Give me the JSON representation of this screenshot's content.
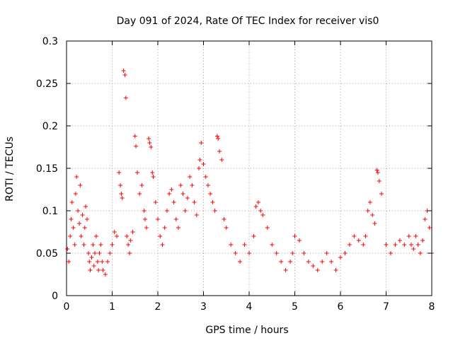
{
  "chart_data": {
    "type": "scatter",
    "title": "Day 091 of 2024, Rate Of TEC Index for receiver vis0",
    "xlabel": "GPS time / hours",
    "ylabel": "ROTI / TECUs",
    "xlim": [
      0,
      8
    ],
    "ylim": [
      0,
      0.3
    ],
    "xticks": [
      "0",
      "1",
      "2",
      "3",
      "4",
      "5",
      "6",
      "7",
      "8"
    ],
    "yticks": [
      "0",
      "0.05",
      "0.1",
      "0.15",
      "0.2",
      "0.25",
      "0.3"
    ],
    "grid": true,
    "marker": "+",
    "color": "#ff0000",
    "series": [
      {
        "name": "vis0",
        "x": [
          0.02,
          0.05,
          0.08,
          0.1,
          0.12,
          0.15,
          0.18,
          0.2,
          0.22,
          0.25,
          0.28,
          0.3,
          0.32,
          0.35,
          0.38,
          0.4,
          0.42,
          0.45,
          0.48,
          0.5,
          0.52,
          0.55,
          0.58,
          0.6,
          0.62,
          0.65,
          0.68,
          0.7,
          0.72,
          0.75,
          0.78,
          0.8,
          0.85,
          0.9,
          0.95,
          1.0,
          1.05,
          1.1,
          1.15,
          1.18,
          1.2,
          1.22,
          1.25,
          1.28,
          1.3,
          1.32,
          1.35,
          1.38,
          1.4,
          1.45,
          1.5,
          1.52,
          1.55,
          1.6,
          1.65,
          1.7,
          1.72,
          1.75,
          1.8,
          1.82,
          1.85,
          1.88,
          1.9,
          1.95,
          2.0,
          2.05,
          2.1,
          2.15,
          2.2,
          2.25,
          2.3,
          2.35,
          2.4,
          2.45,
          2.5,
          2.55,
          2.6,
          2.65,
          2.7,
          2.75,
          2.8,
          2.85,
          2.9,
          2.92,
          2.95,
          3.0,
          3.05,
          3.1,
          3.15,
          3.2,
          3.25,
          3.3,
          3.32,
          3.35,
          3.4,
          3.45,
          3.5,
          3.6,
          3.7,
          3.8,
          3.9,
          4.0,
          4.1,
          4.15,
          4.2,
          4.25,
          4.3,
          4.4,
          4.5,
          4.6,
          4.7,
          4.8,
          4.9,
          4.95,
          5.0,
          5.1,
          5.2,
          5.3,
          5.4,
          5.5,
          5.6,
          5.7,
          5.8,
          5.9,
          6.0,
          6.1,
          6.2,
          6.3,
          6.4,
          6.5,
          6.55,
          6.6,
          6.65,
          6.7,
          6.75,
          6.8,
          6.82,
          6.85,
          6.9,
          7.0,
          7.1,
          7.2,
          7.3,
          7.4,
          7.5,
          7.55,
          7.6,
          7.65,
          7.7,
          7.75,
          7.8,
          7.85,
          7.9,
          7.95,
          8.0
        ],
        "y": [
          0.055,
          0.04,
          0.07,
          0.09,
          0.11,
          0.08,
          0.06,
          0.12,
          0.14,
          0.1,
          0.085,
          0.13,
          0.07,
          0.095,
          0.06,
          0.08,
          0.105,
          0.09,
          0.05,
          0.04,
          0.03,
          0.045,
          0.06,
          0.035,
          0.05,
          0.07,
          0.04,
          0.03,
          0.05,
          0.06,
          0.04,
          0.03,
          0.025,
          0.04,
          0.05,
          0.06,
          0.075,
          0.07,
          0.145,
          0.13,
          0.12,
          0.115,
          0.265,
          0.26,
          0.233,
          0.07,
          0.06,
          0.05,
          0.065,
          0.075,
          0.188,
          0.176,
          0.145,
          0.12,
          0.13,
          0.1,
          0.09,
          0.08,
          0.185,
          0.18,
          0.175,
          0.145,
          0.14,
          0.11,
          0.09,
          0.07,
          0.06,
          0.08,
          0.1,
          0.12,
          0.125,
          0.11,
          0.09,
          0.08,
          0.13,
          0.12,
          0.1,
          0.115,
          0.14,
          0.13,
          0.11,
          0.095,
          0.15,
          0.16,
          0.18,
          0.155,
          0.14,
          0.13,
          0.12,
          0.11,
          0.1,
          0.188,
          0.185,
          0.17,
          0.16,
          0.09,
          0.08,
          0.06,
          0.05,
          0.04,
          0.06,
          0.05,
          0.07,
          0.105,
          0.11,
          0.1,
          0.095,
          0.08,
          0.06,
          0.05,
          0.04,
          0.03,
          0.04,
          0.05,
          0.07,
          0.065,
          0.05,
          0.04,
          0.035,
          0.03,
          0.04,
          0.05,
          0.04,
          0.03,
          0.045,
          0.05,
          0.06,
          0.07,
          0.065,
          0.06,
          0.07,
          0.1,
          0.11,
          0.095,
          0.085,
          0.148,
          0.145,
          0.135,
          0.12,
          0.06,
          0.05,
          0.06,
          0.065,
          0.06,
          0.07,
          0.06,
          0.055,
          0.07,
          0.06,
          0.05,
          0.065,
          0.09,
          0.1,
          0.08,
          0.05
        ]
      }
    ]
  }
}
